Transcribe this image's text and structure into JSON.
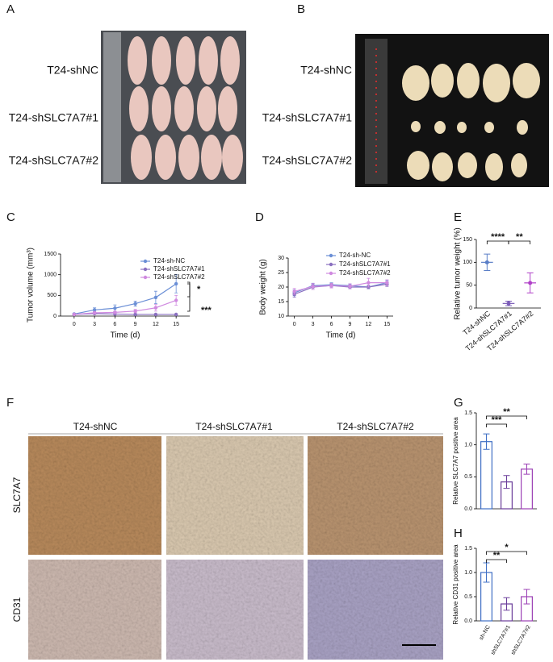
{
  "panel_labels": [
    "A",
    "B",
    "C",
    "D",
    "E",
    "F",
    "G",
    "H"
  ],
  "photo_A_rows": [
    "T24-shNC",
    "T24-shSLC7A7#1",
    "T24-shSLC7A7#2"
  ],
  "photo_B_rows": [
    "T24-shNC",
    "T24-shSLC7A7#1",
    "T24-shSLC7A7#2"
  ],
  "ihc_columns": [
    "T24-shNC",
    "T24-shSLC7A7#1",
    "T24-shSLC7A7#2"
  ],
  "ihc_rows": [
    "SLC7A7",
    "CD31"
  ],
  "chart_data": [
    {
      "type": "line",
      "xlabel": "Time (d)",
      "ylabel": "Tumor volume (mm³)",
      "x": [
        0,
        3,
        6,
        9,
        12,
        15
      ],
      "xlim": [
        -2,
        17
      ],
      "xticks": [
        0,
        3,
        6,
        9,
        12,
        15
      ],
      "ylim": [
        0,
        1500
      ],
      "yticks": [
        0,
        500,
        1000,
        1500
      ],
      "series": [
        {
          "name": "T24-sh-NC",
          "color": "#6b8fd6",
          "values": [
            50,
            150,
            190,
            300,
            450,
            780
          ],
          "errors": [
            20,
            50,
            80,
            60,
            150,
            220
          ]
        },
        {
          "name": "T24-shSLC7A7#1",
          "color": "#8a70c0",
          "values": [
            40,
            60,
            50,
            40,
            40,
            40
          ],
          "errors": [
            10,
            15,
            15,
            10,
            10,
            10
          ]
        },
        {
          "name": "T24-shSLC7A7#2",
          "color": "#d08ae0",
          "values": [
            40,
            80,
            90,
            120,
            200,
            380
          ],
          "errors": [
            10,
            30,
            30,
            40,
            80,
            120
          ]
        }
      ],
      "annotations": [
        "*",
        "***"
      ]
    },
    {
      "type": "line",
      "xlabel": "Time (d)",
      "ylabel": "Body weight (g)",
      "x": [
        0,
        3,
        6,
        9,
        12,
        15
      ],
      "xlim": [
        -1,
        16
      ],
      "xticks": [
        0,
        3,
        6,
        9,
        12,
        15
      ],
      "ylim": [
        10,
        30
      ],
      "yticks": [
        10,
        15,
        20,
        25,
        30
      ],
      "series": [
        {
          "name": "T24-sh-NC",
          "color": "#6b8fd6",
          "values": [
            18,
            20.5,
            20.8,
            20.5,
            20,
            21.5
          ],
          "errors": [
            1,
            0.8,
            0.7,
            0.6,
            0.6,
            0.8
          ]
        },
        {
          "name": "T24-shSLC7A7#1",
          "color": "#8a70c0",
          "values": [
            17.5,
            20,
            20.5,
            20,
            20,
            21
          ],
          "errors": [
            1,
            0.8,
            0.7,
            0.6,
            0.6,
            0.8
          ]
        },
        {
          "name": "T24-shSLC7A7#2",
          "color": "#d08ae0",
          "values": [
            18.5,
            20.2,
            20.5,
            20.3,
            21.5,
            21.5
          ],
          "errors": [
            1,
            1,
            0.8,
            0.8,
            1.5,
            1
          ]
        }
      ],
      "annotations": []
    },
    {
      "type": "dot",
      "ylabel": "Relative tumor weight (%)",
      "categories": [
        "T24-shNC",
        "T24-shSLC7A7#1",
        "T24-shSLC7A7#2"
      ],
      "values": [
        100,
        10,
        55
      ],
      "errors": [
        18,
        5,
        22
      ],
      "colors": [
        "#5b7fc7",
        "#7b5cb8",
        "#b040c8"
      ],
      "ylim": [
        0,
        150
      ],
      "yticks": [
        0,
        50,
        100,
        150
      ],
      "annotations": [
        "****",
        "**"
      ]
    },
    {
      "type": "bar",
      "ylabel": "Relative SLC7A7 positive area",
      "categories": [
        null,
        null,
        null
      ],
      "values": [
        1.05,
        0.42,
        0.62
      ],
      "errors": [
        0.12,
        0.1,
        0.08
      ],
      "colors": [
        "#3f6fc4",
        "#6a3d9a",
        "#9b3fb5"
      ],
      "ylim": [
        0,
        1.5
      ],
      "yticks": [
        {
          "value": 0,
          "label": "0.0"
        },
        0.5,
        {
          "value": 1,
          "label": "1.0"
        },
        1.5
      ],
      "annotations": [
        "***",
        "**"
      ]
    },
    {
      "type": "bar",
      "ylabel": "Relative CD31 positive area",
      "categories": [
        "sh-NC",
        "shSLC7A7#1",
        "shSLC7A7#2"
      ],
      "values": [
        1.0,
        0.35,
        0.5
      ],
      "errors": [
        0.2,
        0.13,
        0.15
      ],
      "colors": [
        "#3f6fc4",
        "#6a3d9a",
        "#9b3fb5"
      ],
      "ylim": [
        0,
        1.5
      ],
      "yticks": [
        {
          "value": 0,
          "label": "0.0"
        },
        0.5,
        {
          "value": 1,
          "label": "1.0"
        },
        1.5
      ],
      "annotations": [
        "**",
        "*"
      ]
    }
  ]
}
